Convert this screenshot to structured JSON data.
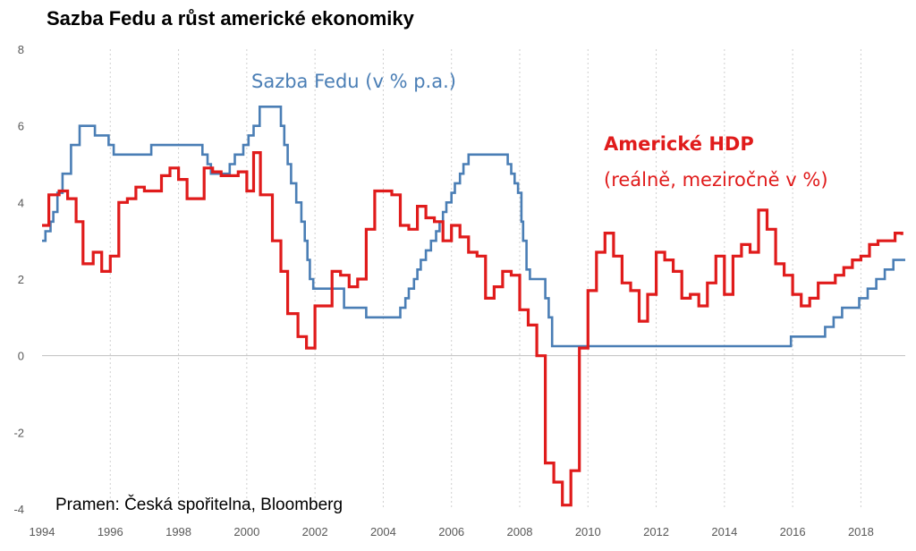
{
  "chart_data": {
    "type": "line",
    "title": "Sazba Fedu a růst americké ekonomiky",
    "source": "Pramen: Česká spořitelna, Bloomberg",
    "xlim": [
      1994,
      2019.3
    ],
    "ylim": [
      -4,
      8
    ],
    "x_ticks": [
      1994,
      1996,
      1998,
      2000,
      2002,
      2004,
      2006,
      2008,
      2010,
      2012,
      2014,
      2016,
      2018
    ],
    "x_tick_labels": [
      "1994",
      "1996",
      "1998",
      "2000",
      "2002",
      "2004",
      "2006",
      "2008",
      "2010",
      "2012",
      "2014",
      "2016",
      "2018"
    ],
    "y_ticks": [
      -4,
      -2,
      0,
      2,
      4,
      6,
      8
    ],
    "y_tick_labels": [
      "-4",
      "-2",
      "0",
      "2",
      "4",
      "6",
      "8"
    ],
    "grid": "vertical",
    "annotations": [
      {
        "series": "fed",
        "label_bold": "Sazba Fedu",
        "label_rest": " (v % p.a.)",
        "color": "#4A7EB5"
      },
      {
        "series": "gdp",
        "label_bold": "Americké HDP",
        "label_line2": "(reálně, meziročně v %)",
        "color": "#E01B1B"
      }
    ],
    "series": [
      {
        "id": "fed",
        "color": "#4A7EB5",
        "points": [
          [
            1994.0,
            3.0
          ],
          [
            1994.1,
            3.25
          ],
          [
            1994.25,
            3.5
          ],
          [
            1994.33,
            3.75
          ],
          [
            1994.45,
            4.25
          ],
          [
            1994.6,
            4.75
          ],
          [
            1994.85,
            5.5
          ],
          [
            1995.1,
            6.0
          ],
          [
            1995.55,
            5.75
          ],
          [
            1995.95,
            5.5
          ],
          [
            1996.1,
            5.25
          ],
          [
            1997.2,
            5.5
          ],
          [
            1998.7,
            5.25
          ],
          [
            1998.85,
            5.0
          ],
          [
            1998.95,
            4.75
          ],
          [
            1999.5,
            5.0
          ],
          [
            1999.65,
            5.25
          ],
          [
            1999.9,
            5.5
          ],
          [
            2000.05,
            5.75
          ],
          [
            2000.2,
            6.0
          ],
          [
            2000.38,
            6.5
          ],
          [
            2001.0,
            6.0
          ],
          [
            2001.1,
            5.5
          ],
          [
            2001.2,
            5.0
          ],
          [
            2001.3,
            4.5
          ],
          [
            2001.45,
            4.0
          ],
          [
            2001.6,
            3.5
          ],
          [
            2001.7,
            3.0
          ],
          [
            2001.78,
            2.5
          ],
          [
            2001.85,
            2.0
          ],
          [
            2001.95,
            1.75
          ],
          [
            2002.85,
            1.25
          ],
          [
            2003.5,
            1.0
          ],
          [
            2004.5,
            1.25
          ],
          [
            2004.65,
            1.5
          ],
          [
            2004.75,
            1.75
          ],
          [
            2004.9,
            2.0
          ],
          [
            2005.0,
            2.25
          ],
          [
            2005.1,
            2.5
          ],
          [
            2005.25,
            2.75
          ],
          [
            2005.4,
            3.0
          ],
          [
            2005.55,
            3.25
          ],
          [
            2005.65,
            3.5
          ],
          [
            2005.75,
            3.75
          ],
          [
            2005.85,
            4.0
          ],
          [
            2006.0,
            4.25
          ],
          [
            2006.1,
            4.5
          ],
          [
            2006.25,
            4.75
          ],
          [
            2006.35,
            5.0
          ],
          [
            2006.5,
            5.25
          ],
          [
            2007.65,
            5.0
          ],
          [
            2007.75,
            4.75
          ],
          [
            2007.85,
            4.5
          ],
          [
            2007.95,
            4.25
          ],
          [
            2008.05,
            3.5
          ],
          [
            2008.1,
            3.0
          ],
          [
            2008.2,
            2.25
          ],
          [
            2008.3,
            2.0
          ],
          [
            2008.75,
            1.5
          ],
          [
            2008.85,
            1.0
          ],
          [
            2008.95,
            0.25
          ],
          [
            2015.95,
            0.5
          ],
          [
            2016.95,
            0.75
          ],
          [
            2017.2,
            1.0
          ],
          [
            2017.45,
            1.25
          ],
          [
            2017.95,
            1.5
          ],
          [
            2018.2,
            1.75
          ],
          [
            2018.45,
            2.0
          ],
          [
            2018.7,
            2.25
          ],
          [
            2018.95,
            2.5
          ],
          [
            2019.3,
            2.5
          ]
        ]
      },
      {
        "id": "gdp",
        "color": "#E01B1B",
        "points": [
          [
            1994.0,
            3.4
          ],
          [
            1994.2,
            4.2
          ],
          [
            1994.5,
            4.3
          ],
          [
            1994.75,
            4.1
          ],
          [
            1995.0,
            3.5
          ],
          [
            1995.2,
            2.4
          ],
          [
            1995.5,
            2.7
          ],
          [
            1995.75,
            2.2
          ],
          [
            1996.0,
            2.6
          ],
          [
            1996.25,
            4.0
          ],
          [
            1996.5,
            4.1
          ],
          [
            1996.75,
            4.4
          ],
          [
            1997.0,
            4.3
          ],
          [
            1997.5,
            4.7
          ],
          [
            1997.75,
            4.9
          ],
          [
            1998.0,
            4.6
          ],
          [
            1998.25,
            4.1
          ],
          [
            1998.75,
            4.9
          ],
          [
            1999.0,
            4.8
          ],
          [
            1999.25,
            4.7
          ],
          [
            1999.75,
            4.8
          ],
          [
            2000.0,
            4.3
          ],
          [
            2000.2,
            5.3
          ],
          [
            2000.4,
            4.2
          ],
          [
            2000.75,
            3.0
          ],
          [
            2001.0,
            2.2
          ],
          [
            2001.2,
            1.1
          ],
          [
            2001.5,
            0.5
          ],
          [
            2001.75,
            0.2
          ],
          [
            2002.0,
            1.3
          ],
          [
            2002.25,
            1.3
          ],
          [
            2002.5,
            2.2
          ],
          [
            2002.75,
            2.1
          ],
          [
            2003.0,
            1.8
          ],
          [
            2003.25,
            2.0
          ],
          [
            2003.5,
            3.3
          ],
          [
            2003.75,
            4.3
          ],
          [
            2004.25,
            4.2
          ],
          [
            2004.5,
            3.4
          ],
          [
            2004.75,
            3.3
          ],
          [
            2005.0,
            3.9
          ],
          [
            2005.25,
            3.6
          ],
          [
            2005.5,
            3.5
          ],
          [
            2005.75,
            3.0
          ],
          [
            2006.0,
            3.4
          ],
          [
            2006.25,
            3.1
          ],
          [
            2006.5,
            2.7
          ],
          [
            2006.75,
            2.6
          ],
          [
            2007.0,
            1.5
          ],
          [
            2007.25,
            1.8
          ],
          [
            2007.5,
            2.2
          ],
          [
            2007.75,
            2.1
          ],
          [
            2008.0,
            1.2
          ],
          [
            2008.25,
            0.8
          ],
          [
            2008.5,
            0.0
          ],
          [
            2008.75,
            -2.8
          ],
          [
            2009.0,
            -3.3
          ],
          [
            2009.25,
            -3.9
          ],
          [
            2009.5,
            -3.0
          ],
          [
            2009.75,
            0.2
          ],
          [
            2010.0,
            1.7
          ],
          [
            2010.25,
            2.7
          ],
          [
            2010.5,
            3.2
          ],
          [
            2010.75,
            2.6
          ],
          [
            2011.0,
            1.9
          ],
          [
            2011.25,
            1.7
          ],
          [
            2011.5,
            0.9
          ],
          [
            2011.75,
            1.6
          ],
          [
            2012.0,
            2.7
          ],
          [
            2012.25,
            2.5
          ],
          [
            2012.5,
            2.2
          ],
          [
            2012.75,
            1.5
          ],
          [
            2013.0,
            1.6
          ],
          [
            2013.25,
            1.3
          ],
          [
            2013.5,
            1.9
          ],
          [
            2013.75,
            2.6
          ],
          [
            2014.0,
            1.6
          ],
          [
            2014.25,
            2.6
          ],
          [
            2014.5,
            2.9
          ],
          [
            2014.75,
            2.7
          ],
          [
            2015.0,
            3.8
          ],
          [
            2015.25,
            3.3
          ],
          [
            2015.5,
            2.4
          ],
          [
            2015.75,
            2.1
          ],
          [
            2016.0,
            1.6
          ],
          [
            2016.25,
            1.3
          ],
          [
            2016.5,
            1.5
          ],
          [
            2016.75,
            1.9
          ],
          [
            2017.25,
            2.1
          ],
          [
            2017.5,
            2.3
          ],
          [
            2017.75,
            2.5
          ],
          [
            2018.0,
            2.6
          ],
          [
            2018.25,
            2.9
          ],
          [
            2018.5,
            3.0
          ],
          [
            2018.75,
            3.0
          ],
          [
            2019.0,
            3.2
          ],
          [
            2019.2,
            3.15
          ]
        ]
      }
    ]
  }
}
